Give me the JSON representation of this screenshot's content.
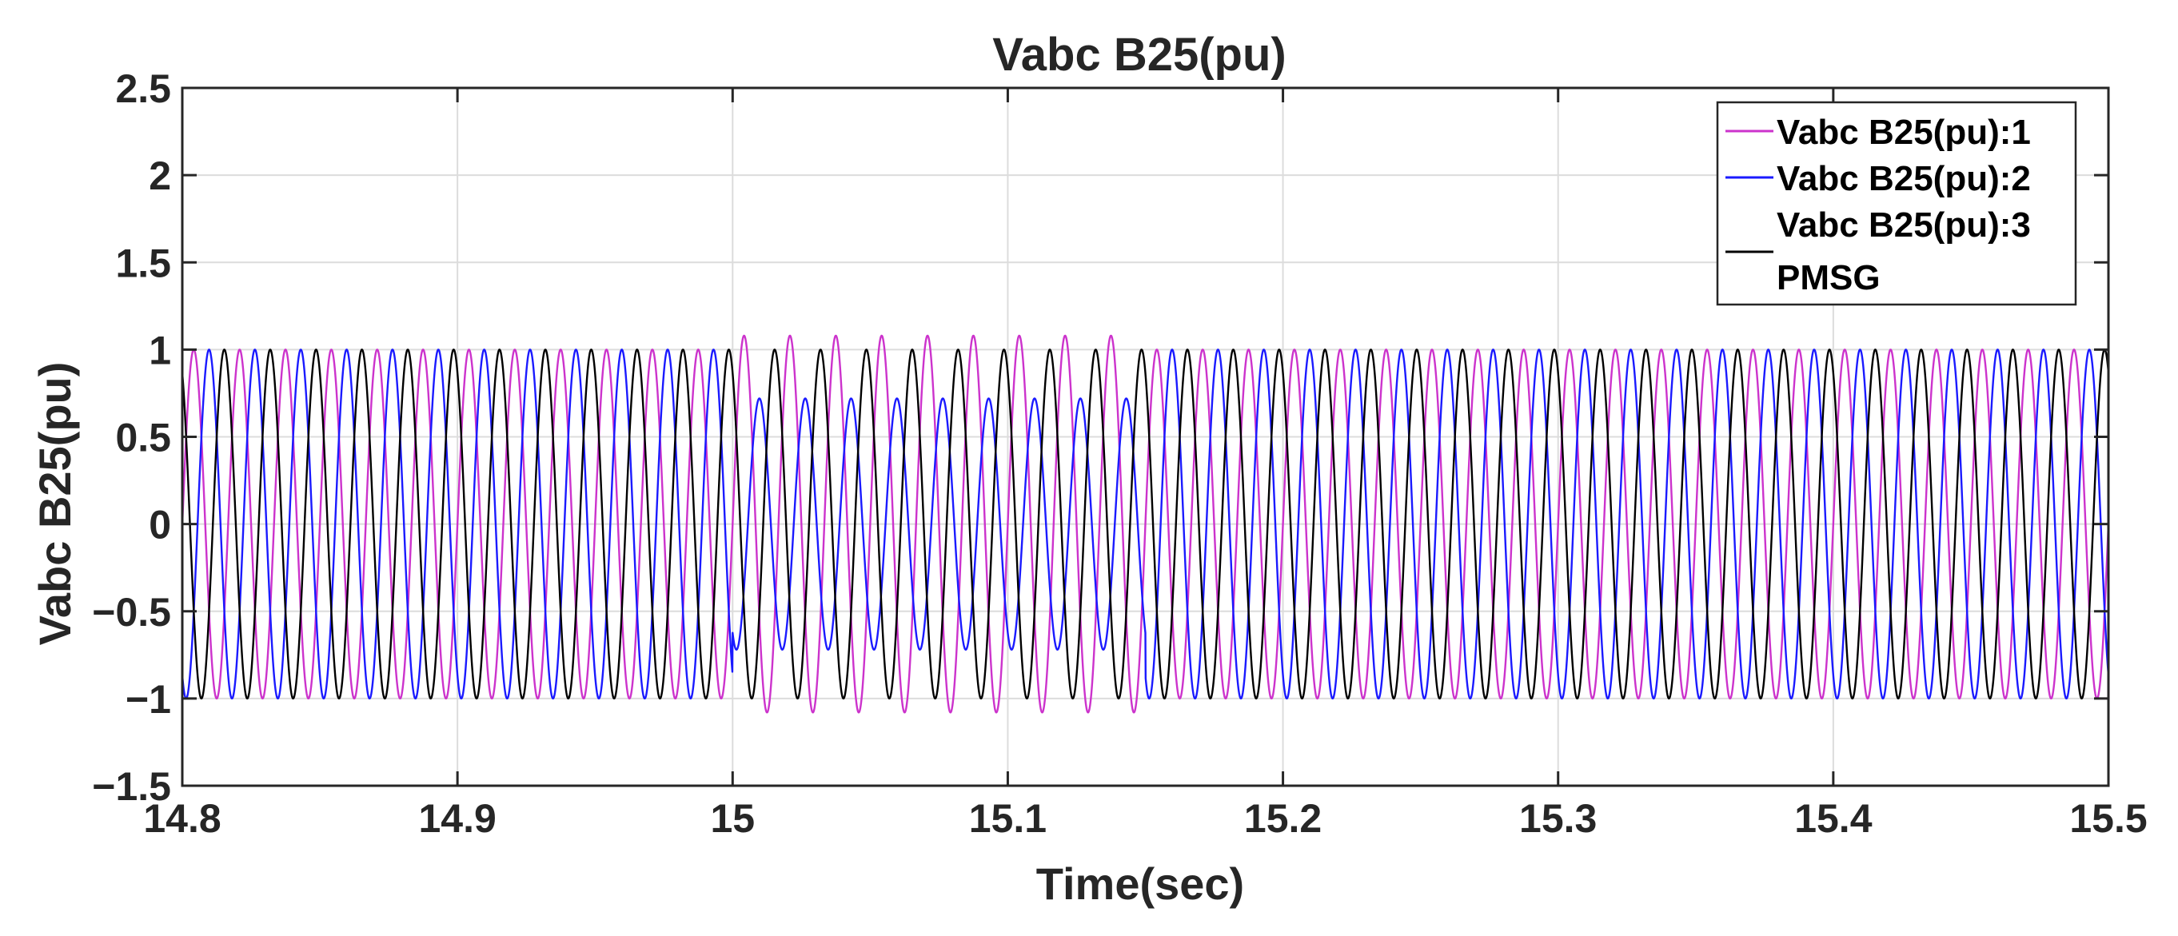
{
  "chart_data": {
    "type": "line",
    "title": "Vabc B25(pu)",
    "xlabel": "Time(sec)",
    "ylabel": "Vabc B25(pu)",
    "xlim": [
      14.8,
      15.5
    ],
    "ylim": [
      -1.5,
      2.5
    ],
    "grid": true,
    "legend_position": "top-right",
    "x_ticks": [
      14.8,
      14.9,
      15.0,
      15.1,
      15.2,
      15.3,
      15.4,
      15.5
    ],
    "x_tick_labels": [
      "14.8",
      "14.9",
      "15",
      "15.1",
      "15.2",
      "15.3",
      "15.4",
      "15.5"
    ],
    "y_ticks": [
      -1.5,
      -1,
      -0.5,
      0,
      0.5,
      1,
      1.5,
      2,
      2.5
    ],
    "y_tick_labels": [
      "−1.5",
      "−1",
      "−0.5",
      "0",
      "0.5",
      "1",
      "1.5",
      "2",
      "2.5"
    ],
    "frequency_hz": 60,
    "fault_start": 15.0,
    "fault_end": 15.15,
    "series": [
      {
        "name": "Vabc B25(pu):1",
        "color": "#cc33cc",
        "phase_deg": 0,
        "amplitude_normal": 1.0,
        "amplitude_fault": 1.08,
        "fault_offset": 0.0
      },
      {
        "name": "Vabc B25(pu):2",
        "color": "#1a1aff",
        "phase_deg": -120,
        "amplitude_normal": 1.0,
        "amplitude_fault": 0.72,
        "fault_offset": 0.0
      },
      {
        "name": "Vabc B25(pu):3",
        "color": "#000000",
        "phase_deg": 120,
        "amplitude_normal": 1.0,
        "amplitude_fault": 1.0,
        "fault_offset": 0.0
      }
    ],
    "legend_entries": [
      {
        "label": "Vabc B25(pu):1",
        "color": "#cc33cc"
      },
      {
        "label": "Vabc B25(pu):2",
        "color": "#1a1aff"
      },
      {
        "label": "Vabc B25(pu):3",
        "color": "#000000"
      },
      {
        "label": "PMSG",
        "color": ""
      }
    ]
  }
}
